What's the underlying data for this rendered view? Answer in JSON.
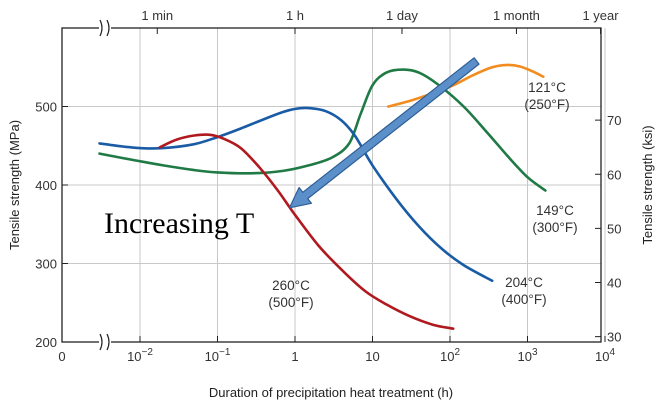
{
  "chart_data": {
    "type": "line",
    "title": "",
    "xlabel": "Duration of precipitation heat treatment (h)",
    "ylabel": "Tensile strength (MPa)",
    "ylabel_right": "Tensile strength (ksi)",
    "x_scale": "log",
    "x_ticks": [
      {
        "value": 0.01,
        "base": "10",
        "exp": "−2"
      },
      {
        "value": 0.1,
        "base": "10",
        "exp": "−1"
      },
      {
        "value": 1,
        "base": "1",
        "exp": ""
      },
      {
        "value": 10,
        "base": "10",
        "exp": ""
      },
      {
        "value": 100,
        "base": "10",
        "exp": "2"
      },
      {
        "value": 1000,
        "base": "10",
        "exp": "3"
      },
      {
        "value": 10000,
        "base": "10",
        "exp": "4"
      }
    ],
    "x_zero_label": "0",
    "y_ticks": [
      200,
      300,
      400,
      500
    ],
    "y_right_ticks": [
      30,
      40,
      50,
      60,
      70
    ],
    "top_ticks": [
      {
        "label": "1 min",
        "value": 0.0167
      },
      {
        "label": "1 h",
        "value": 1
      },
      {
        "label": "1 day",
        "value": 24
      },
      {
        "label": "1 month",
        "value": 720
      },
      {
        "label": "1 year",
        "value": 8760
      }
    ],
    "series": [
      {
        "label_line1": "121°C",
        "label_line2": "(250°F)",
        "color": "#F28C1F",
        "x": [
          16,
          30,
          60,
          110,
          200,
          350,
          550,
          800,
          1150,
          1600
        ],
        "y": [
          500,
          507,
          517,
          527,
          540,
          550,
          553,
          551,
          545,
          538
        ]
      },
      {
        "label_line1": "149°C",
        "label_line2": "(300°F)",
        "color": "#1F7A45",
        "x": [
          0.003,
          0.008,
          0.02,
          0.05,
          0.1,
          0.3,
          0.7,
          1.5,
          3,
          5,
          7,
          10,
          15,
          25,
          40,
          70,
          150,
          300,
          600,
          1000,
          1700
        ],
        "y": [
          440,
          432,
          425,
          419,
          416,
          415,
          418,
          425,
          435,
          453,
          490,
          527,
          543,
          547,
          543,
          528,
          500,
          467,
          433,
          410,
          393
        ]
      },
      {
        "label_line1": "204°C",
        "label_line2": "(400°F)",
        "color": "#1A5BA6",
        "x": [
          0.003,
          0.006,
          0.01,
          0.02,
          0.05,
          0.1,
          0.2,
          0.4,
          0.7,
          1,
          1.5,
          2.5,
          4,
          6,
          10,
          20,
          40,
          80,
          150,
          350
        ],
        "y": [
          453,
          449,
          447,
          447,
          452,
          461,
          472,
          484,
          493,
          497,
          498,
          494,
          482,
          462,
          425,
          383,
          347,
          318,
          298,
          278
        ]
      },
      {
        "label_line1": "260°C",
        "label_line2": "(500°F)",
        "color": "#B01A1F",
        "x": [
          0.018,
          0.03,
          0.05,
          0.08,
          0.12,
          0.2,
          0.35,
          0.6,
          1,
          2,
          4,
          8,
          15,
          30,
          60,
          110
        ],
        "y": [
          448,
          458,
          463,
          464,
          459,
          447,
          422,
          393,
          362,
          323,
          292,
          265,
          248,
          233,
          222,
          217
        ]
      }
    ],
    "annotation": {
      "text": "Increasing T",
      "arrow_from": {
        "x": 220,
        "y": 558
      },
      "arrow_to": {
        "x": 0.85,
        "y": 371
      }
    }
  }
}
